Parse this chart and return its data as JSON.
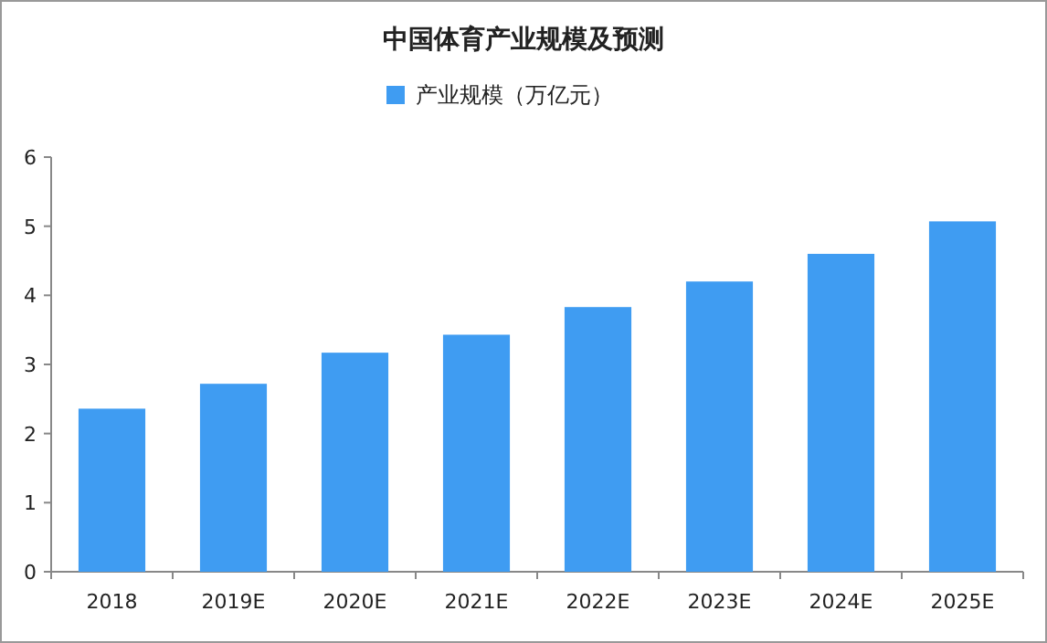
{
  "chart_data": {
    "type": "bar",
    "title": "中国体育产业规模及预测",
    "categories": [
      "2018",
      "2019E",
      "2020E",
      "2021E",
      "2022E",
      "2023E",
      "2024E",
      "2025E"
    ],
    "series": [
      {
        "name": "产业规模（万亿元）",
        "color": "#3f9cf2",
        "values": [
          2.36,
          2.72,
          3.17,
          3.43,
          3.83,
          4.2,
          4.6,
          5.07
        ]
      }
    ],
    "ylim": [
      0,
      6
    ],
    "yticks": [
      0,
      1,
      2,
      3,
      4,
      5,
      6
    ],
    "grid": false,
    "legend": "top"
  }
}
